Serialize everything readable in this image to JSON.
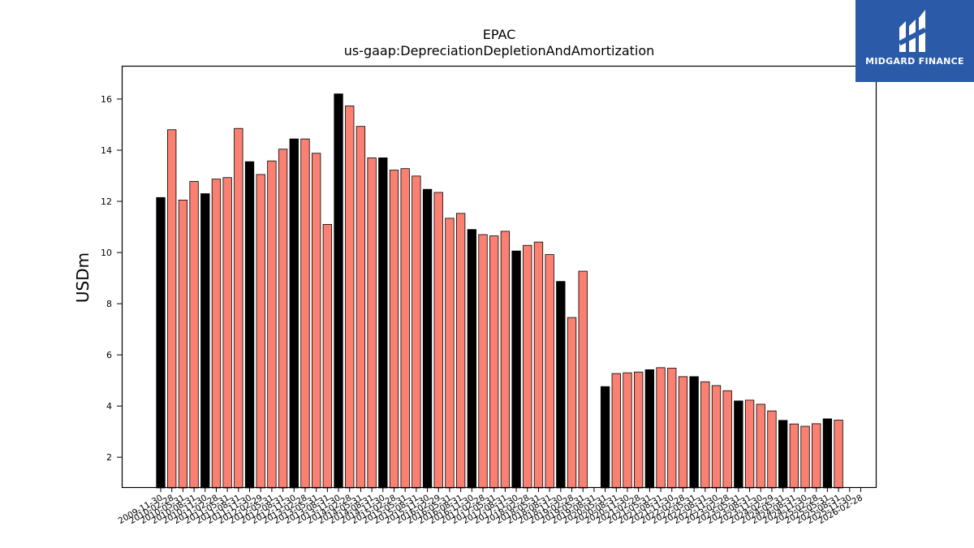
{
  "brand": {
    "name": "MIDGARD FINANCE",
    "bg_color": "#2a5aa8"
  },
  "chart_data": {
    "type": "bar",
    "title": "EPAC",
    "subtitle": "us-gaap:DepreciationDepletionAndAmortization",
    "ylabel": "USDm",
    "xlabel": "",
    "ylim": [
      0.8,
      17.3
    ],
    "yticks": [
      2,
      4,
      6,
      8,
      10,
      12,
      14,
      16
    ],
    "grid": false,
    "colors": {
      "fy": "#000000",
      "quarter": "#fa8072",
      "edge": "#000000"
    },
    "categories": [
      "2009-11-30",
      "2010-02-28",
      "2010-05-31",
      "2010-08-31",
      "2010-11-30",
      "2011-02-28",
      "2011-05-31",
      "2011-08-31",
      "2011-11-30",
      "2012-02-29",
      "2012-05-31",
      "2012-08-31",
      "2012-11-30",
      "2013-02-28",
      "2013-05-31",
      "2013-08-31",
      "2013-11-30",
      "2014-02-28",
      "2014-05-31",
      "2014-08-31",
      "2014-11-30",
      "2015-02-28",
      "2015-05-31",
      "2015-08-31",
      "2015-11-30",
      "2016-02-29",
      "2016-05-31",
      "2016-08-31",
      "2016-11-30",
      "2017-02-28",
      "2017-05-31",
      "2017-08-31",
      "2017-11-30",
      "2018-02-28",
      "2018-05-31",
      "2018-08-31",
      "2018-11-30",
      "2019-02-28",
      "2019-05-31",
      "2019-08-31",
      "2020-05-31",
      "2020-08-31",
      "2020-11-30",
      "2021-02-28",
      "2021-05-31",
      "2021-08-31",
      "2021-11-30",
      "2022-02-28",
      "2022-05-31",
      "2022-08-31",
      "2022-11-30",
      "2023-02-28",
      "2023-05-31",
      "2023-08-31",
      "2023-11-30",
      "2024-02-29",
      "2024-05-31",
      "2024-08-31",
      "2024-11-30",
      "2025-02-28",
      "2025-05-31",
      "2025-08-31",
      "2025-11-30",
      "2026-02-28"
    ],
    "values": [
      12.15,
      14.8,
      12.05,
      12.78,
      12.3,
      12.87,
      12.93,
      14.85,
      13.55,
      13.05,
      13.58,
      14.04,
      14.44,
      14.44,
      13.88,
      11.1,
      16.2,
      15.73,
      14.93,
      13.7,
      13.7,
      13.22,
      13.28,
      12.99,
      12.47,
      12.35,
      11.34,
      11.53,
      10.9,
      10.7,
      10.65,
      10.83,
      10.06,
      10.28,
      10.41,
      9.92,
      8.87,
      7.46,
      9.27,
      null,
      4.76,
      5.27,
      5.3,
      5.33,
      5.42,
      5.5,
      5.48,
      5.15,
      5.15,
      4.95,
      4.8,
      4.6,
      4.2,
      4.23,
      4.07,
      3.81,
      3.44,
      3.3,
      3.21,
      3.31,
      3.5,
      3.45,
      null,
      null
    ],
    "fiscal_year_end": [
      true,
      false,
      false,
      false,
      true,
      false,
      false,
      false,
      true,
      false,
      false,
      false,
      true,
      false,
      false,
      false,
      true,
      false,
      false,
      false,
      true,
      false,
      false,
      false,
      true,
      false,
      false,
      false,
      true,
      false,
      false,
      false,
      true,
      false,
      false,
      false,
      true,
      false,
      false,
      false,
      true,
      false,
      false,
      false,
      true,
      false,
      false,
      false,
      true,
      false,
      false,
      false,
      true,
      false,
      false,
      false,
      true,
      false,
      false,
      false,
      true,
      false,
      false,
      false
    ]
  }
}
